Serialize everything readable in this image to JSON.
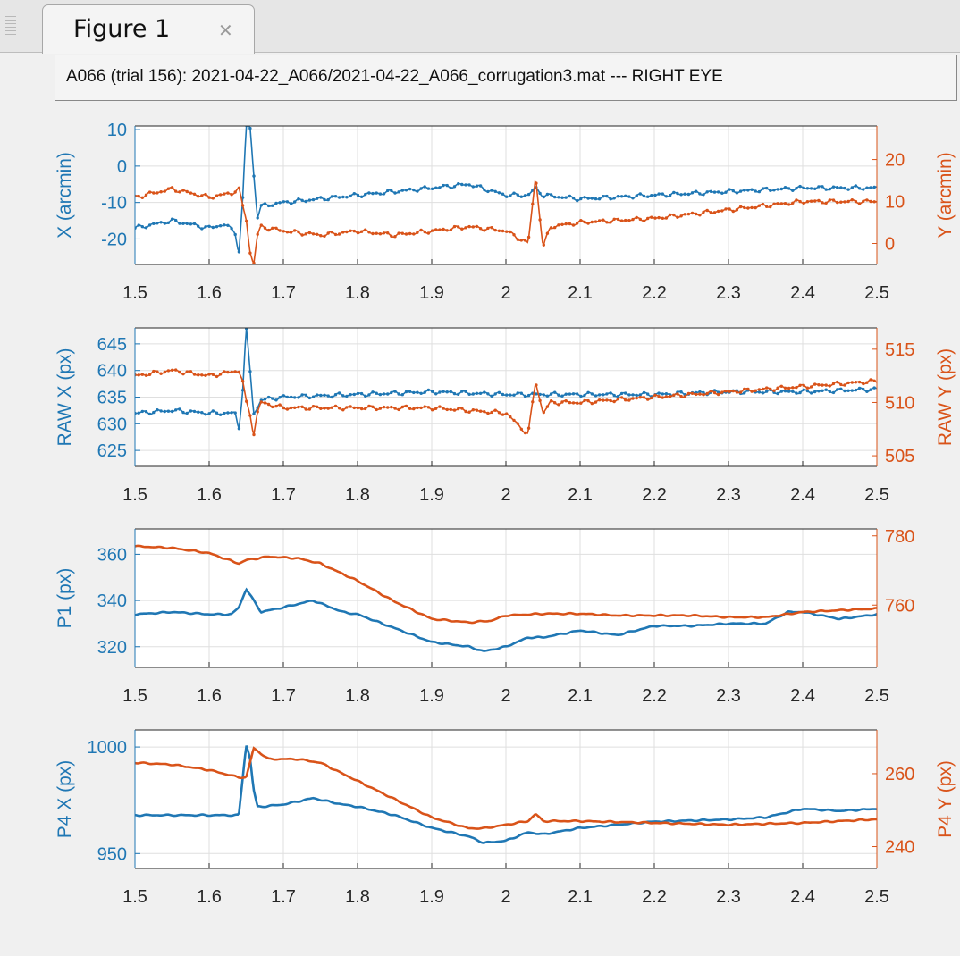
{
  "window": {
    "tab_label": "Figure 1",
    "close_icon": "close-icon",
    "title": "A066 (trial 156): 2021-04-22_A066/2021-04-22_A066_corrugation3.mat --- RIGHT EYE"
  },
  "colors": {
    "left_series": "#1f77b4",
    "right_series": "#d95319",
    "grid": "#dfdfdf"
  },
  "chart_data": [
    {
      "type": "line",
      "x_range": [
        1.5,
        2.5
      ],
      "x_ticks": [
        "1.5",
        "1.6",
        "1.7",
        "1.8",
        "1.9",
        "2",
        "2.1",
        "2.2",
        "2.3",
        "2.4",
        "2.5"
      ],
      "grid": true,
      "left_axis": {
        "label": "X (arcmin)",
        "ylim": [
          -27,
          11
        ],
        "ticks": [
          -20,
          -10,
          0,
          10
        ]
      },
      "right_axis": {
        "label": "Y (arcmin)",
        "ylim": [
          -5,
          28
        ],
        "ticks": [
          0,
          10,
          20
        ]
      },
      "series": [
        {
          "axis": "left",
          "x": [
            1.5,
            1.55,
            1.6,
            1.62,
            1.635,
            1.64,
            1.645,
            1.65,
            1.655,
            1.66,
            1.665,
            1.67,
            1.7,
            1.75,
            1.8,
            1.85,
            1.9,
            1.95,
            2.0,
            2.03,
            2.04,
            2.05,
            2.1,
            2.2,
            2.3,
            2.4,
            2.5
          ],
          "y": [
            -17,
            -15,
            -17,
            -16,
            -18,
            -24,
            -10,
            11,
            11,
            -2,
            -14,
            -11,
            -10,
            -9,
            -8,
            -7,
            -6,
            -5,
            -8,
            -8,
            -6,
            -8,
            -9,
            -8,
            -7,
            -6,
            -6
          ]
        },
        {
          "axis": "right",
          "x": [
            1.5,
            1.55,
            1.6,
            1.63,
            1.64,
            1.645,
            1.65,
            1.655,
            1.66,
            1.665,
            1.67,
            1.7,
            1.75,
            1.8,
            1.85,
            1.9,
            1.95,
            2.0,
            2.03,
            2.04,
            2.05,
            2.06,
            2.1,
            2.2,
            2.3,
            2.4,
            2.5
          ],
          "y": [
            11,
            13,
            11,
            12,
            13,
            9,
            6,
            -2,
            -5,
            2,
            4,
            3,
            2,
            3,
            2,
            3,
            4,
            3,
            0,
            16,
            -1,
            4,
            5,
            6,
            8,
            10,
            10
          ]
        }
      ]
    },
    {
      "type": "line",
      "x_range": [
        1.5,
        2.5
      ],
      "x_ticks": [
        "1.5",
        "1.6",
        "1.7",
        "1.8",
        "1.9",
        "2",
        "2.1",
        "2.2",
        "2.3",
        "2.4",
        "2.5"
      ],
      "grid": true,
      "left_axis": {
        "label": "RAW X (px)",
        "ylim": [
          622,
          648
        ],
        "ticks": [
          625,
          630,
          635,
          640,
          645
        ]
      },
      "right_axis": {
        "label": "RAW Y (px)",
        "ylim": [
          504,
          517
        ],
        "ticks": [
          505,
          510,
          515
        ]
      },
      "series": [
        {
          "axis": "left",
          "x": [
            1.5,
            1.55,
            1.6,
            1.635,
            1.64,
            1.645,
            1.65,
            1.655,
            1.66,
            1.665,
            1.67,
            1.7,
            1.8,
            1.9,
            2.0,
            2.05,
            2.1,
            2.2,
            2.3,
            2.4,
            2.5
          ],
          "y": [
            632,
            632.5,
            632,
            632,
            629,
            636,
            648,
            640,
            632,
            633,
            634.5,
            635,
            635.5,
            636,
            635.5,
            635.5,
            635.5,
            635.5,
            636,
            636,
            636.5
          ]
        },
        {
          "axis": "right",
          "x": [
            1.5,
            1.55,
            1.6,
            1.64,
            1.645,
            1.65,
            1.655,
            1.66,
            1.665,
            1.67,
            1.7,
            1.8,
            1.9,
            2.0,
            2.03,
            2.04,
            2.05,
            2.06,
            2.1,
            2.2,
            2.3,
            2.4,
            2.5
          ],
          "y": [
            512.5,
            513,
            512.5,
            513,
            512,
            510,
            509,
            507,
            509,
            510,
            509.5,
            509.5,
            509.5,
            509,
            507,
            512,
            509,
            510,
            510,
            510.5,
            511,
            511.5,
            512
          ]
        }
      ]
    },
    {
      "type": "line",
      "x_range": [
        1.5,
        2.5
      ],
      "x_ticks": [
        "1.5",
        "1.6",
        "1.7",
        "1.8",
        "1.9",
        "2",
        "2.1",
        "2.2",
        "2.3",
        "2.4",
        "2.5"
      ],
      "grid": true,
      "left_axis": {
        "label": "P1 (px)",
        "ylim": [
          311,
          371
        ],
        "ticks": [
          320,
          340,
          360
        ]
      },
      "right_axis": {
        "label": "",
        "ylim": [
          742,
          782
        ],
        "ticks": [
          760,
          780
        ]
      },
      "series": [
        {
          "axis": "left",
          "x": [
            1.5,
            1.55,
            1.6,
            1.63,
            1.64,
            1.65,
            1.66,
            1.67,
            1.7,
            1.74,
            1.78,
            1.8,
            1.85,
            1.9,
            1.95,
            1.97,
            2.0,
            2.03,
            2.05,
            2.1,
            2.15,
            2.2,
            2.25,
            2.3,
            2.35,
            2.38,
            2.4,
            2.45,
            2.5
          ],
          "y": [
            334,
            335,
            334,
            334,
            337,
            345,
            340,
            335,
            337,
            340,
            335,
            334,
            328,
            322,
            320,
            318,
            320,
            324,
            324,
            327,
            325,
            329,
            329,
            330,
            330,
            335,
            335,
            332,
            334
          ]
        },
        {
          "axis": "right",
          "x": [
            1.5,
            1.55,
            1.6,
            1.64,
            1.65,
            1.68,
            1.72,
            1.75,
            1.8,
            1.85,
            1.9,
            1.95,
            1.98,
            2.0,
            2.05,
            2.1,
            2.15,
            2.2,
            2.25,
            2.3,
            2.35,
            2.4,
            2.45,
            2.5
          ],
          "y": [
            777,
            776.5,
            775,
            772,
            773,
            774,
            773.5,
            772,
            767,
            761,
            756,
            755,
            755.5,
            757,
            757.5,
            757.5,
            757,
            757,
            757,
            756.5,
            756.5,
            758,
            758.5,
            759
          ]
        }
      ]
    },
    {
      "type": "line",
      "x_range": [
        1.5,
        2.5
      ],
      "x_ticks": [
        "1.5",
        "1.6",
        "1.7",
        "1.8",
        "1.9",
        "2",
        "2.1",
        "2.2",
        "2.3",
        "2.4",
        "2.5"
      ],
      "grid": true,
      "left_axis": {
        "label": "P4 X (px)",
        "ylim": [
          943,
          1008
        ],
        "ticks": [
          950,
          1000
        ]
      },
      "right_axis": {
        "label": "P4 Y (px)",
        "ylim": [
          234,
          272
        ],
        "ticks": [
          240,
          260
        ]
      },
      "series": [
        {
          "axis": "left",
          "x": [
            1.5,
            1.55,
            1.6,
            1.64,
            1.645,
            1.65,
            1.655,
            1.66,
            1.665,
            1.67,
            1.7,
            1.74,
            1.78,
            1.8,
            1.85,
            1.9,
            1.95,
            1.97,
            2.0,
            2.03,
            2.05,
            2.1,
            2.2,
            2.3,
            2.35,
            2.4,
            2.45,
            2.5
          ],
          "y": [
            968,
            968,
            968,
            968,
            985,
            1001,
            995,
            980,
            972,
            972,
            973,
            976,
            973,
            972,
            968,
            962,
            958,
            955,
            956,
            960,
            959,
            962,
            965,
            966,
            967,
            971,
            970,
            971
          ]
        },
        {
          "axis": "right",
          "x": [
            1.5,
            1.55,
            1.6,
            1.64,
            1.65,
            1.66,
            1.68,
            1.72,
            1.75,
            1.8,
            1.85,
            1.9,
            1.95,
            1.97,
            2.0,
            2.03,
            2.04,
            2.05,
            2.1,
            2.2,
            2.3,
            2.4,
            2.5
          ],
          "y": [
            263,
            262.5,
            261,
            259,
            259,
            267,
            264,
            264,
            263,
            258,
            253,
            248,
            245,
            245,
            246,
            247,
            249,
            247,
            247,
            246.5,
            246,
            246.5,
            247.5
          ]
        }
      ]
    }
  ]
}
